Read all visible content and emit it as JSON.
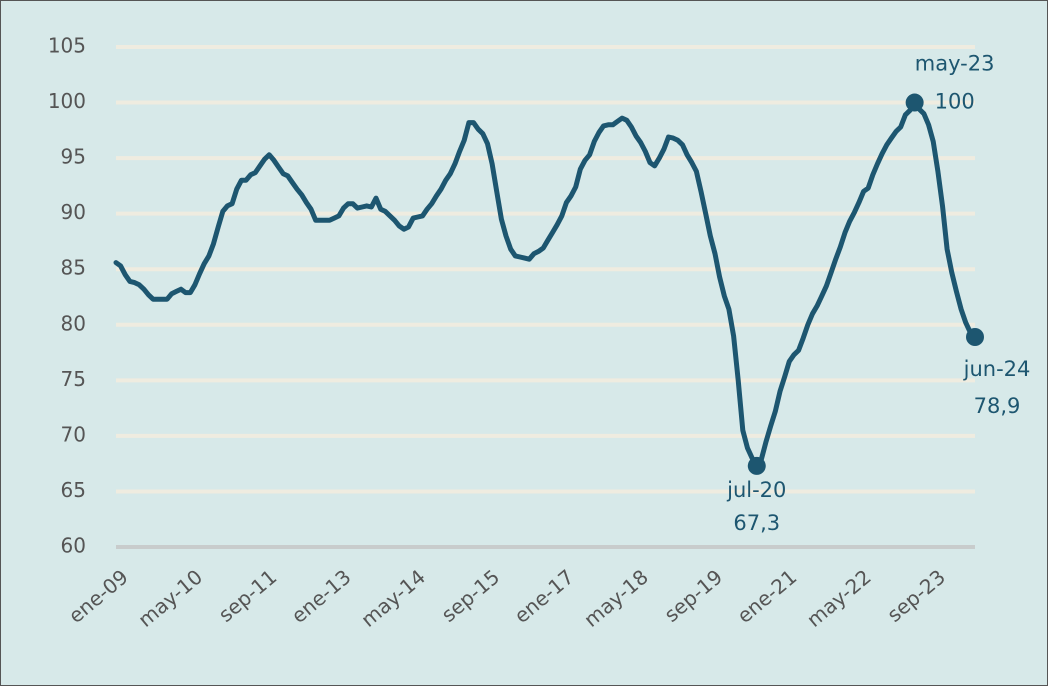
{
  "chart_data": {
    "type": "line",
    "categories": [
      "ene-09",
      null,
      null,
      null,
      null,
      null,
      null,
      null,
      null,
      null,
      null,
      null,
      null,
      null,
      null,
      null,
      "may-10",
      null,
      null,
      null,
      null,
      null,
      null,
      null,
      null,
      null,
      null,
      null,
      null,
      null,
      null,
      null,
      "sep-11",
      null,
      null,
      null,
      null,
      null,
      null,
      null,
      null,
      null,
      null,
      null,
      null,
      null,
      null,
      null,
      "ene-13",
      null,
      null,
      null,
      null,
      null,
      null,
      null,
      null,
      null,
      null,
      null,
      null,
      null,
      null,
      null,
      "may-14",
      null,
      null,
      null,
      null,
      null,
      null,
      null,
      null,
      null,
      null,
      null,
      null,
      null,
      null,
      null,
      "sep-15",
      null,
      null,
      null,
      null,
      null,
      null,
      null,
      null,
      null,
      null,
      null,
      null,
      null,
      null,
      null,
      "ene-17",
      null,
      null,
      null,
      null,
      null,
      null,
      null,
      null,
      null,
      null,
      null,
      null,
      null,
      null,
      null,
      "may-18",
      null,
      null,
      null,
      null,
      null,
      null,
      null,
      null,
      null,
      null,
      null,
      null,
      null,
      null,
      null,
      "sep-19",
      null,
      null,
      null,
      null,
      null,
      null,
      null,
      null,
      null,
      null,
      null,
      null,
      null,
      null,
      null,
      "ene-21",
      null,
      null,
      null,
      null,
      null,
      null,
      null,
      null,
      null,
      null,
      null,
      null,
      null,
      null,
      null,
      "may-22",
      null,
      null,
      null,
      null,
      null,
      null,
      null,
      null,
      null,
      null,
      null,
      null,
      null,
      null,
      null,
      "sep-23",
      null,
      null,
      null,
      null,
      null,
      null,
      null,
      null,
      null
    ],
    "series": [
      {
        "color": "#1d5670",
        "values": [
          85.6,
          85.3,
          84.5,
          83.9,
          83.8,
          83.6,
          83.2,
          82.7,
          82.3,
          82.3,
          82.3,
          82.3,
          82.8,
          83.0,
          83.2,
          82.9,
          82.9,
          83.6,
          84.6,
          85.5,
          86.2,
          87.3,
          88.8,
          90.2,
          90.7,
          90.9,
          92.2,
          93.0,
          93.0,
          93.5,
          93.7,
          94.3,
          94.9,
          95.3,
          94.8,
          94.2,
          93.6,
          93.4,
          92.8,
          92.2,
          91.7,
          91.0,
          90.4,
          89.4,
          89.4,
          89.4,
          89.4,
          89.6,
          89.8,
          90.5,
          90.9,
          90.9,
          90.5,
          90.6,
          90.7,
          90.6,
          91.4,
          90.4,
          90.2,
          89.8,
          89.4,
          88.9,
          88.6,
          88.8,
          89.6,
          89.7,
          89.8,
          90.4,
          90.9,
          91.6,
          92.2,
          93.0,
          93.6,
          94.5,
          95.6,
          96.6,
          98.2,
          98.2,
          97.6,
          97.2,
          96.3,
          94.5,
          92.0,
          89.5,
          88.0,
          86.8,
          86.2,
          86.1,
          86.0,
          85.9,
          86.4,
          86.6,
          86.9,
          87.6,
          88.3,
          89.0,
          89.8,
          91.0,
          91.6,
          92.4,
          94.0,
          94.8,
          95.3,
          96.5,
          97.3,
          97.9,
          98.0,
          98.0,
          98.3,
          98.6,
          98.4,
          97.8,
          97.0,
          96.4,
          95.6,
          94.6,
          94.3,
          95.0,
          95.8,
          96.9,
          96.8,
          96.6,
          96.2,
          95.3,
          94.6,
          93.8,
          92.0,
          90.0,
          88.0,
          86.4,
          84.3,
          82.6,
          81.4,
          79.0,
          75.0,
          70.5,
          68.9,
          68.0,
          67.3,
          67.9,
          69.5,
          70.9,
          72.2,
          74.0,
          75.3,
          76.7,
          77.3,
          77.7,
          78.8,
          80.0,
          81.0,
          81.7,
          82.6,
          83.5,
          84.7,
          85.9,
          87.0,
          88.3,
          89.3,
          90.1,
          91.0,
          92.0,
          92.3,
          93.5,
          94.5,
          95.4,
          96.2,
          96.8,
          97.4,
          97.8,
          98.9,
          99.3,
          100,
          99.4,
          99.0,
          98.0,
          96.5,
          93.8,
          90.7,
          86.8,
          84.7,
          83.0,
          81.4,
          80.2,
          79.3,
          78.9
        ]
      }
    ],
    "ylim": [
      60,
      105
    ],
    "yticks": [
      60,
      65,
      70,
      75,
      80,
      85,
      90,
      95,
      100,
      105
    ],
    "grid": true,
    "annotations": [
      {
        "label": "may-23",
        "value": 100
      },
      {
        "label": "jul-20",
        "value": 67.3,
        "value_label": "67,3"
      },
      {
        "label": "jun-24",
        "value": 78.9,
        "value_label": "78,9"
      }
    ]
  }
}
